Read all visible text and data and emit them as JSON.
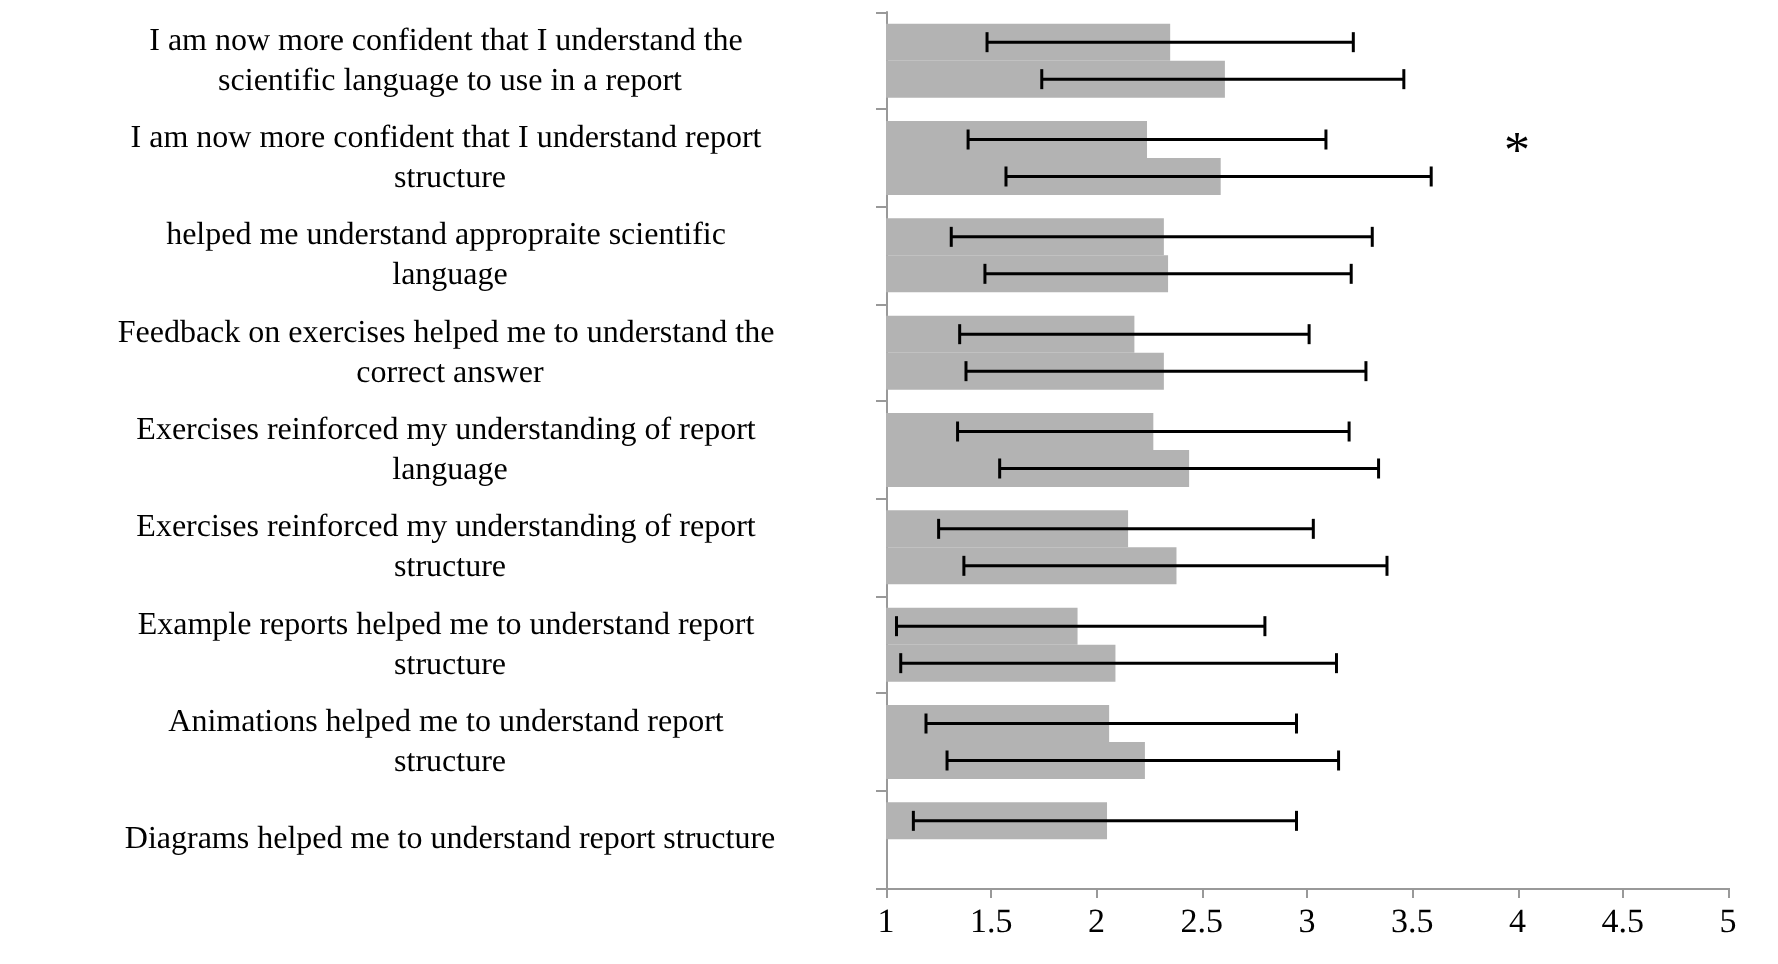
{
  "chart_data": {
    "type": "bar",
    "orientation": "horizontal",
    "categories": [
      "I am now more confident that I understand the scientific language to use in a report",
      "I am now more confident that I understand report structure",
      "helped me understand appropraite scientific language",
      "Feedback on exercises helped me to understand the correct answer",
      "Exercises reinforced my understanding of report language",
      "Exercises reinforced my understanding of report structure",
      "Example reports helped me to understand report structure",
      "Animations helped me to understand report structure",
      "Diagrams helped me to understand report structure"
    ],
    "series": [
      {
        "color": "#b3b3b3",
        "values": [
          2.35,
          2.24,
          2.32,
          2.18,
          2.27,
          2.15,
          1.91,
          2.06,
          2.05
        ],
        "errors": [
          [
            1.48,
            3.22
          ],
          [
            1.39,
            3.09
          ],
          [
            1.31,
            3.31
          ],
          [
            1.35,
            3.01
          ],
          [
            1.34,
            3.2
          ],
          [
            1.25,
            3.03
          ],
          [
            1.05,
            2.8
          ],
          [
            1.19,
            2.95
          ],
          [
            1.13,
            2.95
          ]
        ]
      },
      {
        "color": "#b3b3b3",
        "values": [
          2.61,
          2.59,
          2.34,
          2.32,
          2.44,
          2.38,
          2.09,
          2.23,
          null
        ],
        "errors": [
          [
            1.74,
            3.46
          ],
          [
            1.57,
            3.59
          ],
          [
            1.47,
            3.21
          ],
          [
            1.38,
            3.28
          ],
          [
            1.54,
            3.34
          ],
          [
            1.37,
            3.38
          ],
          [
            1.07,
            3.14
          ],
          [
            1.29,
            3.15
          ],
          null
        ]
      }
    ],
    "xlim": [
      1,
      5
    ],
    "xticks": [
      1,
      1.5,
      2,
      2.5,
      3,
      3.5,
      4,
      4.5,
      5
    ],
    "annotations": [
      "*"
    ],
    "grid": false
  }
}
